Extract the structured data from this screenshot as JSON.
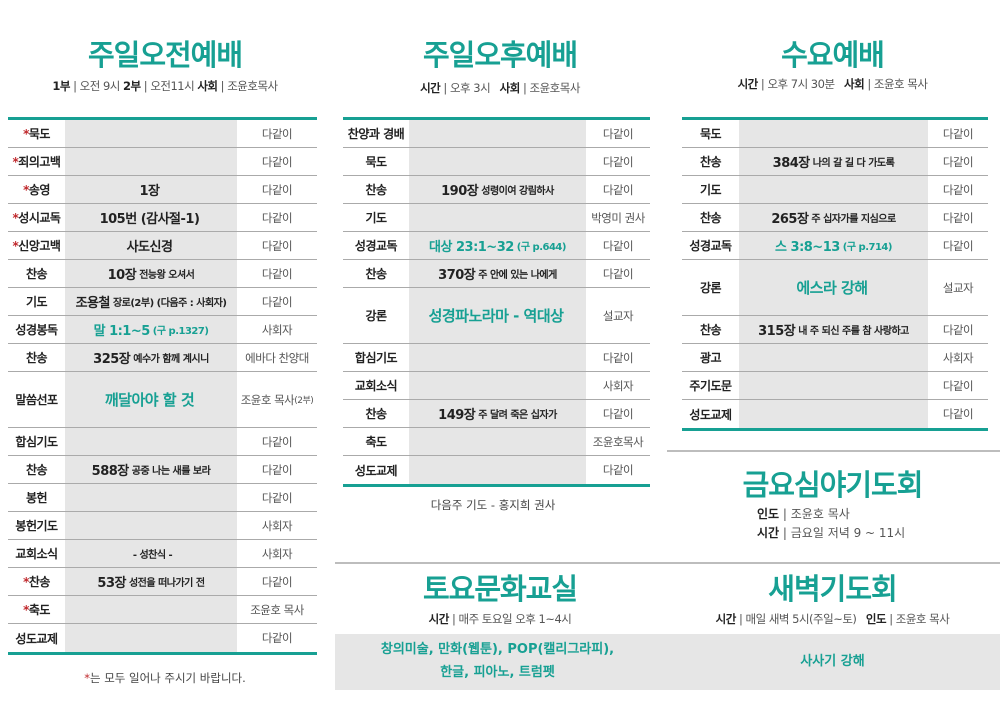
{
  "colors": {
    "accent": "#17a093",
    "cell_bg": "#e6e6e6",
    "star": "#c0282c"
  },
  "morning": {
    "title": "주일오전예배",
    "sub": {
      "k1": "1부",
      "v1": "오전 9시",
      "k2": "2부",
      "v2": "오전11시",
      "k3": "사회",
      "v3": "조윤호목사"
    },
    "rows": [
      {
        "star": "*",
        "label": "묵도",
        "main": "",
        "sub": "",
        "right": "다같이"
      },
      {
        "star": "*",
        "label": "죄의고백",
        "main": "",
        "sub": "",
        "right": "다같이"
      },
      {
        "star": "*",
        "label": "송영",
        "main": "1장",
        "sub": "",
        "right": "다같이"
      },
      {
        "star": "*",
        "label": "성시교독",
        "main": "105번 (감사절-1)",
        "sub": "",
        "right": "다같이"
      },
      {
        "star": "*",
        "label": "신앙고백",
        "main": "사도신경",
        "sub": "",
        "right": "다같이"
      },
      {
        "star": "",
        "label": "찬송",
        "main": "10장",
        "sub": "전능왕 오셔서",
        "right": "다같이"
      },
      {
        "star": "",
        "label": "기도",
        "main": "조용철",
        "sub": "장로(2부)  (다음주 : 사회자)",
        "right": "다같이"
      },
      {
        "star": "",
        "label": "성경봉독",
        "main": "말 1:1~5",
        "sub": "(구 p.1327)",
        "right": "사회자",
        "teal": true
      },
      {
        "star": "",
        "label": "찬송",
        "main": "325장",
        "sub": "예수가 함께 계시니",
        "right": "에바다 찬양대"
      },
      {
        "star": "",
        "label": "말씀선포",
        "main": "깨달아야 할 것",
        "sub": "",
        "right": "조윤호 목사",
        "right_sub": "(2부)",
        "teal": true,
        "tall": true
      },
      {
        "star": "",
        "label": "합심기도",
        "main": "",
        "sub": "",
        "right": "다같이"
      },
      {
        "star": "",
        "label": "찬송",
        "main": "588장",
        "sub": "공중 나는 새를 보라",
        "right": "다같이"
      },
      {
        "star": "",
        "label": "봉헌",
        "main": "",
        "sub": "",
        "right": "다같이"
      },
      {
        "star": "",
        "label": "봉헌기도",
        "main": "",
        "sub": "",
        "right": "사회자"
      },
      {
        "star": "",
        "label": "교회소식",
        "main": "",
        "sub": "- 성찬식 -",
        "right": "사회자"
      },
      {
        "star": "*",
        "label": "찬송",
        "main": "53장",
        "sub": "성전을 떠나가기 전",
        "right": "다같이"
      },
      {
        "star": "*",
        "label": "축도",
        "main": "",
        "sub": "",
        "right": "조윤호 목사"
      },
      {
        "star": "",
        "label": "성도교제",
        "main": "",
        "sub": "",
        "right": "다같이"
      }
    ],
    "note_star": "*",
    "note": "는 모두 일어나 주시기 바랍니다."
  },
  "afternoon": {
    "title": "주일오후예배",
    "sub": {
      "k1": "시간",
      "v1": "오후 3시",
      "k2": "사회",
      "v2": "조윤호목사"
    },
    "rows": [
      {
        "star": "",
        "label": "찬양과 경배",
        "main": "",
        "sub": "",
        "right": "다같이"
      },
      {
        "star": "",
        "label": "묵도",
        "main": "",
        "sub": "",
        "right": "다같이"
      },
      {
        "star": "",
        "label": "찬송",
        "main": "190장",
        "sub": "성령이여 강림하사",
        "right": "다같이"
      },
      {
        "star": "",
        "label": "기도",
        "main": "",
        "sub": "",
        "right": "박영미 권사"
      },
      {
        "star": "",
        "label": "성경교독",
        "main": "대상 23:1~32",
        "sub": "(구 p.644)",
        "right": "다같이",
        "teal": true
      },
      {
        "star": "",
        "label": "찬송",
        "main": "370장",
        "sub": "주 안에 있는 나에게",
        "right": "다같이"
      },
      {
        "star": "",
        "label": "강론",
        "main": "성경파노라마 - 역대상",
        "sub": "",
        "right": "설교자",
        "teal": true,
        "tall": true
      },
      {
        "star": "",
        "label": "합심기도",
        "main": "",
        "sub": "",
        "right": "다같이"
      },
      {
        "star": "",
        "label": "교회소식",
        "main": "",
        "sub": "",
        "right": "사회자"
      },
      {
        "star": "",
        "label": "찬송",
        "main": "149장",
        "sub": "주 달려 죽은 십자가",
        "right": "다같이"
      },
      {
        "star": "",
        "label": "축도",
        "main": "",
        "sub": "",
        "right": "조윤호목사"
      },
      {
        "star": "",
        "label": "성도교제",
        "main": "",
        "sub": "",
        "right": "다같이"
      }
    ],
    "note": "다음주 기도 - 홍지희 권사"
  },
  "wednesday": {
    "title": "수요예배",
    "sub": {
      "k1": "시간",
      "v1": "오후 7시 30분",
      "k2": "사회",
      "v2": "조윤호 목사"
    },
    "rows": [
      {
        "star": "",
        "label": "묵도",
        "main": "",
        "sub": "",
        "right": "다같이"
      },
      {
        "star": "",
        "label": "찬송",
        "main": "384장",
        "sub": "나의 갈 길 다 가도록",
        "right": "다같이"
      },
      {
        "star": "",
        "label": "기도",
        "main": "",
        "sub": "",
        "right": "다같이"
      },
      {
        "star": "",
        "label": "찬송",
        "main": "265장",
        "sub": "주 십자가를 지심으로",
        "right": "다같이"
      },
      {
        "star": "",
        "label": "성경교독",
        "main": "스 3:8~13",
        "sub": "(구 p.714)",
        "right": "다같이",
        "teal": true
      },
      {
        "star": "",
        "label": "강론",
        "main": "에스라 강해",
        "sub": "",
        "right": "설교자",
        "teal": true,
        "tall": true
      },
      {
        "star": "",
        "label": "찬송",
        "main": "315장",
        "sub": "내 주 되신 주를 참 사랑하고",
        "right": "다같이"
      },
      {
        "star": "",
        "label": "광고",
        "main": "",
        "sub": "",
        "right": "사회자"
      },
      {
        "star": "",
        "label": "주기도문",
        "main": "",
        "sub": "",
        "right": "다같이"
      },
      {
        "star": "",
        "label": "성도교제",
        "main": "",
        "sub": "",
        "right": "다같이"
      }
    ]
  },
  "friday": {
    "title": "금요심야기도회",
    "k1": "인도",
    "v1": "조윤호 목사",
    "k2": "시간",
    "v2": "금요일 저녁 9 ~ 11시"
  },
  "saturday": {
    "title": "토요문화교실",
    "k1": "시간",
    "v1": "매주 토요일 오후 1~4시",
    "line1": "창의미술, 만화(웹툰), POP(캘리그라피),",
    "line2": "한글, 피아노, 트럼펫"
  },
  "dawn": {
    "title": "새벽기도회",
    "k1": "시간",
    "v1": "매일 새벽 5시(주일~토)",
    "k2": "인도",
    "v2": "조윤호 목사",
    "body": "사사기 강해"
  }
}
